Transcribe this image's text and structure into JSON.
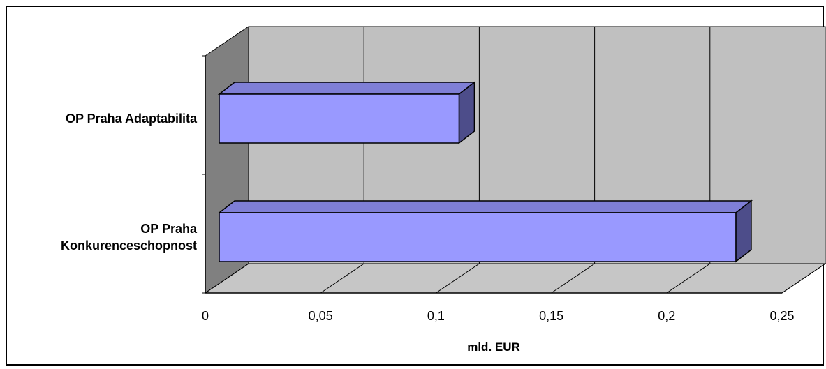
{
  "chart_data": {
    "type": "bar",
    "orientation": "horizontal",
    "style": "3d",
    "title": "",
    "categories": [
      "OP Praha Adaptabilita",
      "OP Praha Konkurenceschopnost"
    ],
    "category_lines": [
      [
        "OP Praha Adaptabilita"
      ],
      [
        "OP Praha",
        "Konkurenceschopnost"
      ]
    ],
    "values": [
      0.11,
      0.23
    ],
    "xlim": [
      0,
      0.25
    ],
    "xticks": [
      0,
      0.05,
      0.1,
      0.15,
      0.2,
      0.25
    ],
    "xtick_labels": [
      "0",
      "0,05",
      "0,1",
      "0,15",
      "0,2",
      "0,25"
    ],
    "xlabel": "mld. EUR",
    "ylabel": "",
    "grid": true,
    "legend": "none",
    "colors": {
      "bar_front": "#9999ff",
      "bar_top": "#7f7fd6",
      "bar_side": "#4d4d8a",
      "back_wall": "#c0c0c0",
      "floor": "#c6c6c6",
      "side_wall": "#808080",
      "grid": "#000000",
      "frame": "#000000"
    }
  }
}
